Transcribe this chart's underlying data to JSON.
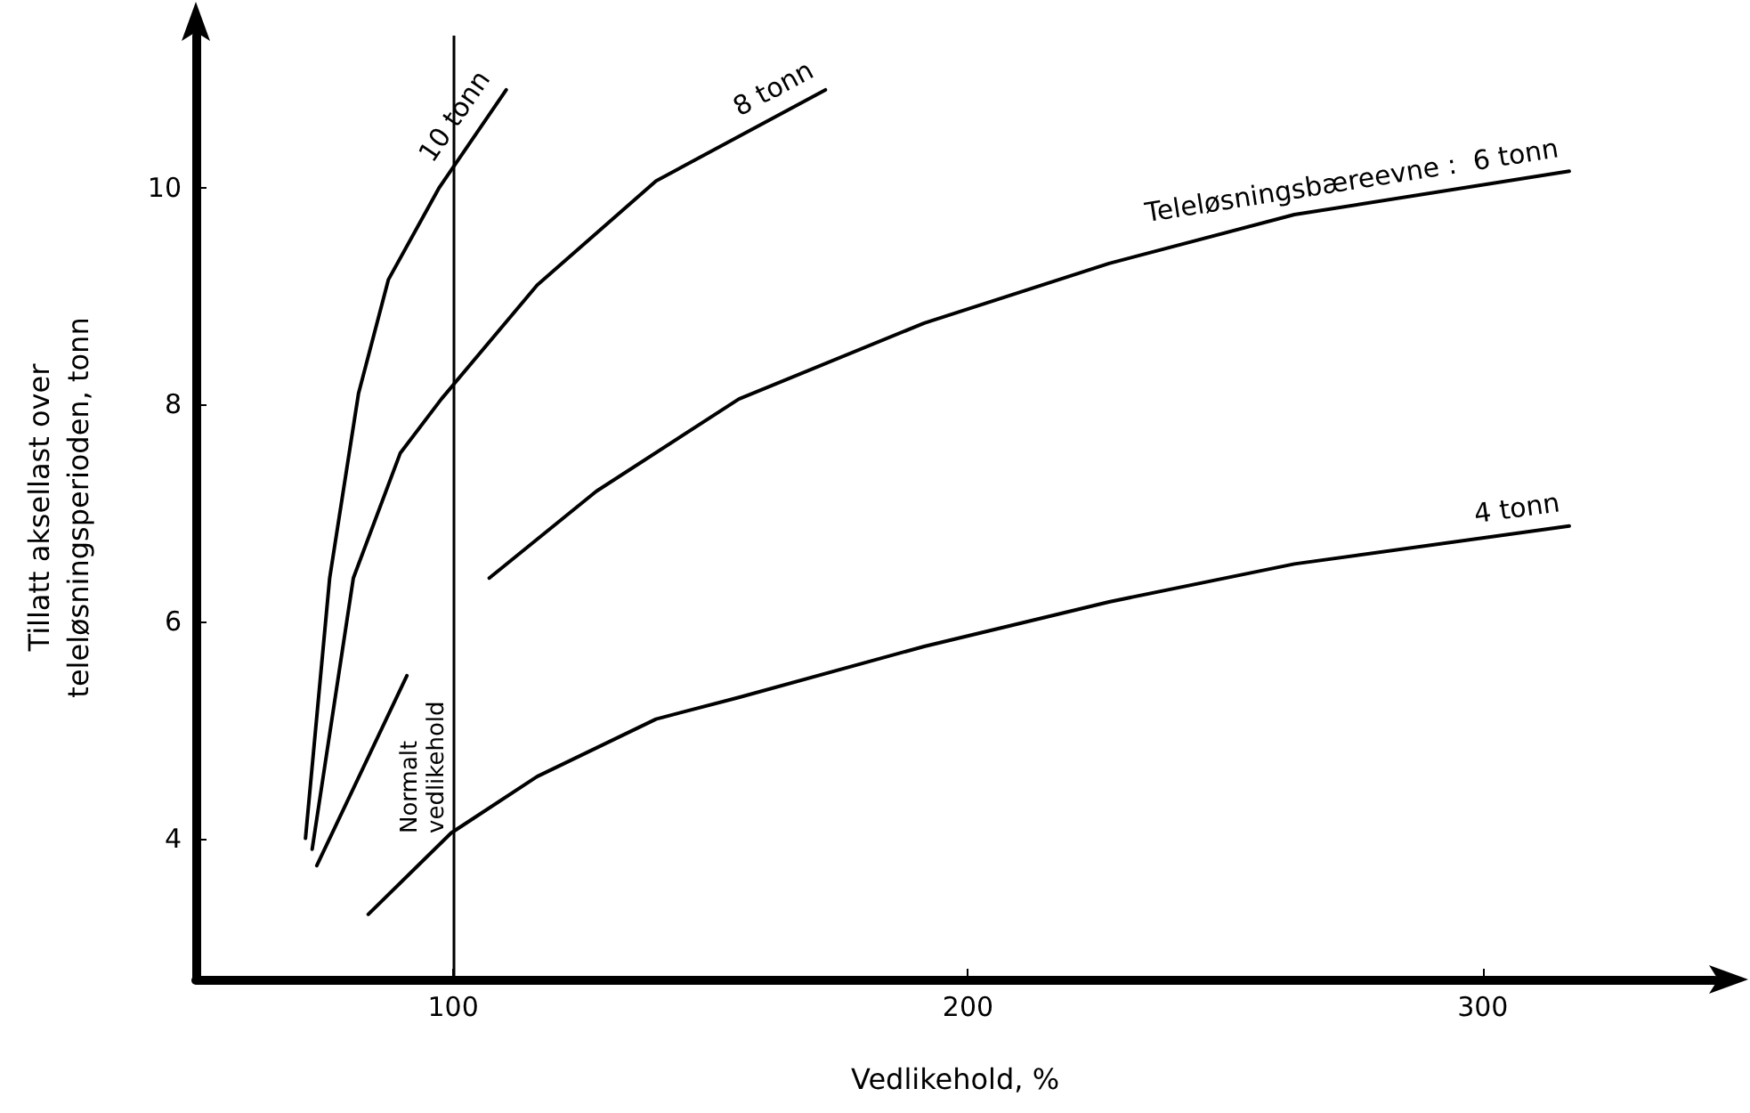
{
  "chart_data": {
    "type": "line",
    "xlabel": "Vedlikehold, %",
    "ylabel": "Tillatt aksellast over\nteleløsningsperioden, tonn",
    "xlim": [
      50,
      345
    ],
    "ylim": [
      2.7,
      11.4
    ],
    "xticks": [
      100,
      200,
      300
    ],
    "yticks": [
      4,
      6,
      8,
      10
    ],
    "grid": false,
    "legend": false,
    "marker": "none",
    "line_style": "solid",
    "series": [
      {
        "name": "10 tonn",
        "color": "#000000",
        "x": [
          71.3,
          76,
          81.6,
          87.4,
          97.3,
          110.3
        ],
        "values": [
          4.0,
          6.4,
          8.1,
          9.15,
          10.0,
          10.9
        ]
      },
      {
        "name": "8 tonn",
        "color": "#000000",
        "x": [
          72.6,
          80.6,
          89.7,
          97.7,
          116.3,
          139.4,
          172.3
        ],
        "values": [
          3.9,
          6.4,
          7.55,
          8.05,
          9.1,
          10.06,
          10.9
        ]
      },
      {
        "name": "Teleløsningsbæreevne :  6 tonn",
        "color": "#000000",
        "x": [
          73.5,
          91,
          null,
          107,
          127.8,
          155.5,
          191.5,
          227.4,
          263.4,
          316.8
        ],
        "values": [
          3.75,
          5.5,
          null,
          6.4,
          7.2,
          8.05,
          8.75,
          9.3,
          9.75,
          10.15
        ]
      },
      {
        "name": "4 tonn",
        "color": "#000000",
        "x": [
          83.5,
          99.6,
          116.3,
          139.4,
          155.5,
          191.5,
          227.4,
          263.4,
          316.8
        ],
        "values": [
          3.3,
          4.05,
          4.57,
          5.1,
          5.3,
          5.77,
          6.18,
          6.53,
          6.88
        ]
      }
    ],
    "ref_lines": [
      {
        "axis": "x",
        "value": 100,
        "label": "Normalt\nvedlikehold",
        "color": "#000000",
        "line_style": "solid"
      }
    ]
  }
}
